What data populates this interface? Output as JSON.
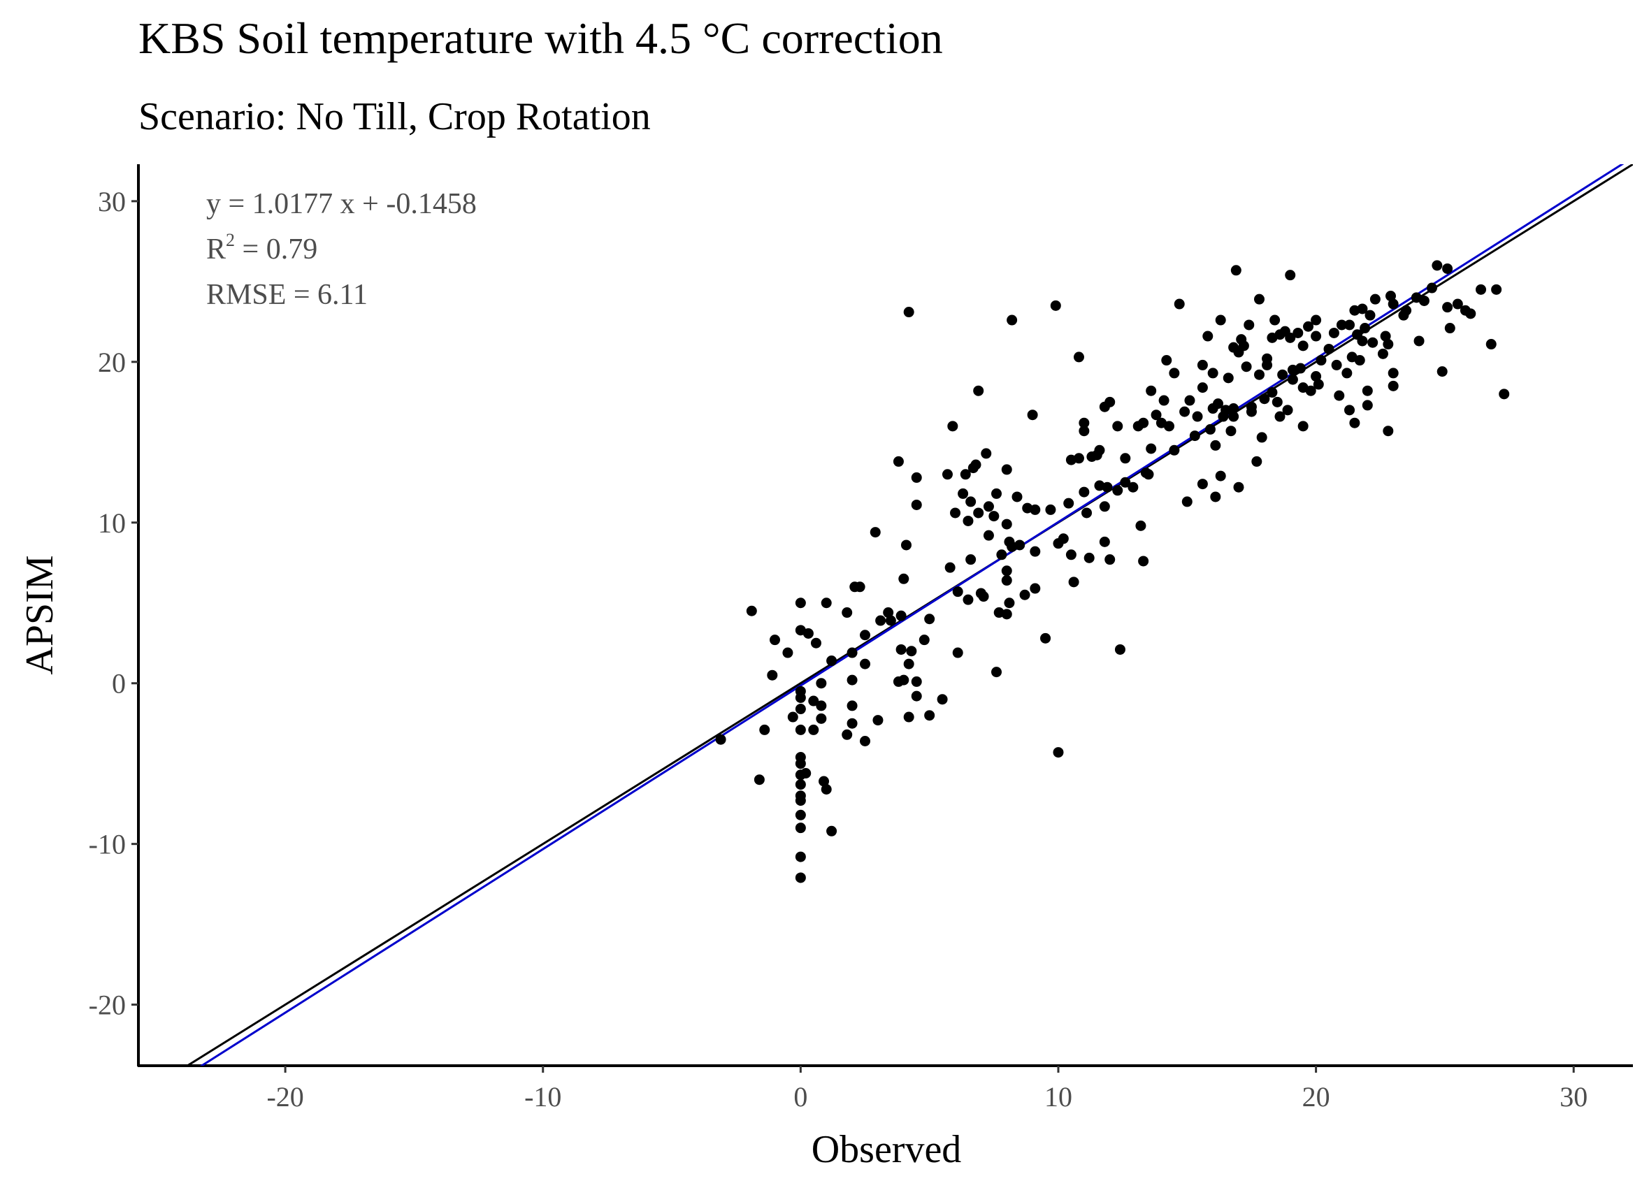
{
  "chart_data": {
    "type": "scatter",
    "title": "KBS Soil temperature with 4.5 °C correction",
    "subtitle": "Scenario: No Till, Crop Rotation",
    "xlabel": "Observed",
    "ylabel": "APSIM",
    "xlim": [
      -25.7,
      32.3
    ],
    "ylim": [
      -23.8,
      32.3
    ],
    "x_ticks": [
      -20,
      -10,
      0,
      10,
      20,
      30
    ],
    "y_ticks": [
      -20,
      -10,
      0,
      10,
      20,
      30
    ],
    "x_tick_labels": [
      "-20",
      "-10",
      "0",
      "10",
      "20",
      "30"
    ],
    "y_tick_labels": [
      "-20",
      "-10",
      "0",
      "10",
      "20",
      "30"
    ],
    "grid": false,
    "annotations": {
      "equation": "y = 1.0177 x +  -0.1458",
      "r2_prefix": "R",
      "r2_sup": "2",
      "r2_value": " = 0.79",
      "rmse": "RMSE = 6.11"
    },
    "lines": [
      {
        "role": "1:1 line",
        "slope": 1.0,
        "intercept": 0.0,
        "color": "#000000"
      },
      {
        "role": "regression line",
        "slope": 1.0177,
        "intercept": -0.1458,
        "color": "#0000cc"
      }
    ],
    "point_color": "#000000",
    "points": [
      [
        -3.1,
        -3.5
      ],
      [
        -1.9,
        4.5
      ],
      [
        -1.6,
        -6.0
      ],
      [
        -1.4,
        -2.9
      ],
      [
        -1.1,
        0.5
      ],
      [
        -1.0,
        2.7
      ],
      [
        -0.5,
        1.9
      ],
      [
        -0.3,
        -2.1
      ],
      [
        0.0,
        5.0
      ],
      [
        0.0,
        3.3
      ],
      [
        0.0,
        -0.5
      ],
      [
        0.0,
        -0.9
      ],
      [
        0.0,
        -1.6
      ],
      [
        0.0,
        -2.9
      ],
      [
        0.0,
        -4.6
      ],
      [
        0.0,
        -5.0
      ],
      [
        0.0,
        -5.7
      ],
      [
        0.0,
        -6.3
      ],
      [
        0.0,
        -7.0
      ],
      [
        0.0,
        -7.3
      ],
      [
        0.0,
        -8.2
      ],
      [
        0.0,
        -9.0
      ],
      [
        0.0,
        -10.8
      ],
      [
        0.0,
        -12.1
      ],
      [
        0.2,
        -5.6
      ],
      [
        0.3,
        3.1
      ],
      [
        0.5,
        -2.9
      ],
      [
        0.5,
        -1.1
      ],
      [
        0.6,
        2.5
      ],
      [
        0.8,
        0.0
      ],
      [
        0.8,
        -1.4
      ],
      [
        0.8,
        -2.2
      ],
      [
        0.9,
        -6.1
      ],
      [
        1.0,
        5.0
      ],
      [
        1.0,
        -6.6
      ],
      [
        1.2,
        -9.2
      ],
      [
        1.2,
        1.4
      ],
      [
        1.8,
        4.4
      ],
      [
        1.8,
        -3.2
      ],
      [
        2.0,
        1.9
      ],
      [
        2.0,
        0.2
      ],
      [
        2.0,
        -1.4
      ],
      [
        2.0,
        -2.5
      ],
      [
        2.1,
        6.0
      ],
      [
        2.3,
        6.0
      ],
      [
        2.5,
        3.0
      ],
      [
        2.5,
        -3.6
      ],
      [
        2.5,
        1.2
      ],
      [
        2.9,
        9.4
      ],
      [
        3.0,
        -2.3
      ],
      [
        3.1,
        3.9
      ],
      [
        3.4,
        4.4
      ],
      [
        3.5,
        3.9
      ],
      [
        3.8,
        0.1
      ],
      [
        3.8,
        13.8
      ],
      [
        3.9,
        4.2
      ],
      [
        3.9,
        2.1
      ],
      [
        4.0,
        0.2
      ],
      [
        4.0,
        6.5
      ],
      [
        4.1,
        8.6
      ],
      [
        4.2,
        1.2
      ],
      [
        4.2,
        -2.1
      ],
      [
        4.2,
        23.1
      ],
      [
        4.3,
        2.0
      ],
      [
        4.5,
        12.8
      ],
      [
        4.5,
        11.1
      ],
      [
        4.5,
        0.1
      ],
      [
        4.5,
        -0.8
      ],
      [
        4.8,
        2.7
      ],
      [
        5.0,
        4.0
      ],
      [
        5.0,
        -2.0
      ],
      [
        5.5,
        -1.0
      ],
      [
        5.7,
        13.0
      ],
      [
        5.8,
        7.2
      ],
      [
        5.9,
        16.0
      ],
      [
        6.0,
        10.6
      ],
      [
        6.1,
        1.9
      ],
      [
        6.1,
        5.7
      ],
      [
        6.3,
        11.8
      ],
      [
        6.4,
        13.0
      ],
      [
        6.5,
        10.1
      ],
      [
        6.5,
        5.2
      ],
      [
        6.6,
        11.3
      ],
      [
        6.6,
        7.7
      ],
      [
        6.7,
        13.4
      ],
      [
        6.8,
        13.6
      ],
      [
        6.9,
        18.2
      ],
      [
        6.9,
        10.6
      ],
      [
        7.0,
        5.6
      ],
      [
        7.1,
        5.4
      ],
      [
        7.2,
        14.3
      ],
      [
        7.3,
        11.0
      ],
      [
        7.3,
        9.2
      ],
      [
        7.5,
        10.4
      ],
      [
        7.6,
        0.7
      ],
      [
        7.6,
        11.8
      ],
      [
        7.7,
        4.4
      ],
      [
        7.8,
        8.0
      ],
      [
        8.0,
        13.3
      ],
      [
        8.0,
        9.9
      ],
      [
        8.1,
        8.8
      ],
      [
        8.0,
        7.0
      ],
      [
        8.0,
        6.4
      ],
      [
        8.0,
        4.3
      ],
      [
        8.1,
        5.0
      ],
      [
        8.2,
        22.6
      ],
      [
        8.2,
        8.5
      ],
      [
        8.4,
        11.6
      ],
      [
        8.5,
        8.6
      ],
      [
        8.7,
        5.5
      ],
      [
        8.8,
        10.9
      ],
      [
        9.0,
        16.7
      ],
      [
        9.1,
        10.8
      ],
      [
        9.1,
        8.2
      ],
      [
        9.1,
        5.9
      ],
      [
        9.5,
        2.8
      ],
      [
        9.7,
        10.8
      ],
      [
        9.9,
        23.5
      ],
      [
        10.0,
        8.7
      ],
      [
        10.0,
        -4.3
      ],
      [
        10.2,
        9.0
      ],
      [
        10.4,
        11.2
      ],
      [
        10.5,
        8.0
      ],
      [
        10.5,
        13.9
      ],
      [
        10.6,
        6.3
      ],
      [
        10.8,
        20.3
      ],
      [
        10.8,
        14.0
      ],
      [
        11.0,
        16.2
      ],
      [
        11.0,
        15.7
      ],
      [
        11.0,
        11.9
      ],
      [
        11.1,
        10.6
      ],
      [
        11.2,
        7.8
      ],
      [
        11.3,
        14.1
      ],
      [
        11.5,
        14.2
      ],
      [
        11.6,
        12.3
      ],
      [
        11.6,
        14.5
      ],
      [
        11.8,
        17.2
      ],
      [
        11.8,
        8.8
      ],
      [
        11.8,
        11.0
      ],
      [
        11.9,
        12.2
      ],
      [
        12.0,
        7.7
      ],
      [
        12.0,
        17.5
      ],
      [
        12.3,
        16.0
      ],
      [
        12.3,
        12.0
      ],
      [
        12.4,
        2.1
      ],
      [
        12.6,
        12.5
      ],
      [
        12.6,
        14.0
      ],
      [
        12.9,
        12.2
      ],
      [
        13.1,
        16.0
      ],
      [
        13.2,
        9.8
      ],
      [
        13.3,
        16.2
      ],
      [
        13.3,
        7.6
      ],
      [
        13.4,
        13.1
      ],
      [
        13.5,
        13.0
      ],
      [
        13.6,
        14.6
      ],
      [
        13.6,
        18.2
      ],
      [
        13.8,
        16.7
      ],
      [
        14.0,
        16.2
      ],
      [
        14.1,
        17.6
      ],
      [
        14.2,
        20.1
      ],
      [
        14.3,
        16.0
      ],
      [
        14.5,
        19.3
      ],
      [
        14.5,
        14.5
      ],
      [
        14.7,
        23.6
      ],
      [
        14.9,
        16.9
      ],
      [
        15.0,
        11.3
      ],
      [
        15.1,
        17.6
      ],
      [
        15.3,
        15.4
      ],
      [
        15.4,
        16.6
      ],
      [
        15.6,
        18.4
      ],
      [
        15.6,
        19.8
      ],
      [
        15.6,
        12.4
      ],
      [
        15.8,
        21.6
      ],
      [
        15.9,
        15.8
      ],
      [
        16.0,
        19.3
      ],
      [
        16.0,
        17.1
      ],
      [
        16.1,
        14.8
      ],
      [
        16.1,
        11.6
      ],
      [
        16.2,
        17.4
      ],
      [
        16.3,
        22.6
      ],
      [
        16.3,
        12.9
      ],
      [
        16.4,
        16.6
      ],
      [
        16.5,
        17.0
      ],
      [
        16.6,
        19.0
      ],
      [
        16.7,
        15.7
      ],
      [
        16.8,
        17.1
      ],
      [
        16.8,
        20.9
      ],
      [
        16.8,
        16.6
      ],
      [
        16.9,
        25.7
      ],
      [
        17.0,
        12.2
      ],
      [
        17.0,
        20.6
      ],
      [
        17.1,
        21.4
      ],
      [
        17.2,
        21.0
      ],
      [
        17.3,
        19.7
      ],
      [
        17.4,
        22.3
      ],
      [
        17.5,
        17.2
      ],
      [
        17.5,
        16.9
      ],
      [
        17.7,
        13.8
      ],
      [
        17.8,
        23.9
      ],
      [
        17.8,
        19.2
      ],
      [
        17.9,
        15.3
      ],
      [
        18.0,
        17.7
      ],
      [
        18.1,
        20.2
      ],
      [
        18.1,
        19.8
      ],
      [
        18.3,
        21.5
      ],
      [
        18.3,
        18.1
      ],
      [
        18.4,
        22.6
      ],
      [
        18.5,
        17.5
      ],
      [
        18.6,
        21.7
      ],
      [
        18.6,
        16.6
      ],
      [
        18.7,
        19.2
      ],
      [
        18.8,
        21.9
      ],
      [
        18.9,
        17.0
      ],
      [
        19.0,
        21.5
      ],
      [
        19.0,
        25.4
      ],
      [
        19.1,
        19.5
      ],
      [
        19.1,
        18.9
      ],
      [
        19.3,
        21.8
      ],
      [
        19.4,
        19.6
      ],
      [
        19.5,
        21.0
      ],
      [
        19.5,
        18.4
      ],
      [
        19.5,
        16.0
      ],
      [
        19.7,
        22.2
      ],
      [
        19.8,
        18.2
      ],
      [
        20.0,
        22.6
      ],
      [
        20.0,
        21.6
      ],
      [
        20.0,
        19.1
      ],
      [
        20.1,
        18.6
      ],
      [
        20.2,
        20.1
      ],
      [
        20.5,
        20.8
      ],
      [
        20.7,
        21.8
      ],
      [
        20.8,
        19.8
      ],
      [
        20.9,
        17.9
      ],
      [
        21.0,
        22.3
      ],
      [
        21.2,
        19.3
      ],
      [
        21.3,
        22.3
      ],
      [
        21.3,
        17.0
      ],
      [
        21.4,
        20.3
      ],
      [
        21.5,
        23.2
      ],
      [
        21.5,
        16.2
      ],
      [
        21.6,
        21.7
      ],
      [
        21.7,
        20.1
      ],
      [
        21.8,
        23.3
      ],
      [
        21.8,
        21.3
      ],
      [
        21.9,
        22.1
      ],
      [
        22.0,
        17.3
      ],
      [
        22.0,
        18.2
      ],
      [
        22.1,
        22.9
      ],
      [
        22.2,
        21.2
      ],
      [
        22.3,
        23.9
      ],
      [
        22.6,
        20.5
      ],
      [
        22.7,
        21.6
      ],
      [
        22.8,
        15.7
      ],
      [
        22.8,
        21.1
      ],
      [
        22.9,
        24.1
      ],
      [
        23.0,
        19.3
      ],
      [
        23.0,
        18.5
      ],
      [
        23.0,
        23.6
      ],
      [
        23.4,
        22.9
      ],
      [
        23.5,
        23.2
      ],
      [
        23.9,
        24.0
      ],
      [
        24.0,
        21.3
      ],
      [
        24.2,
        23.8
      ],
      [
        24.5,
        24.6
      ],
      [
        24.7,
        26.0
      ],
      [
        24.9,
        19.4
      ],
      [
        25.1,
        25.8
      ],
      [
        25.1,
        23.4
      ],
      [
        25.2,
        22.1
      ],
      [
        25.5,
        23.6
      ],
      [
        25.8,
        23.2
      ],
      [
        26.0,
        23.0
      ],
      [
        26.4,
        24.5
      ],
      [
        26.8,
        21.1
      ],
      [
        27.0,
        24.5
      ],
      [
        27.3,
        18.0
      ]
    ]
  }
}
